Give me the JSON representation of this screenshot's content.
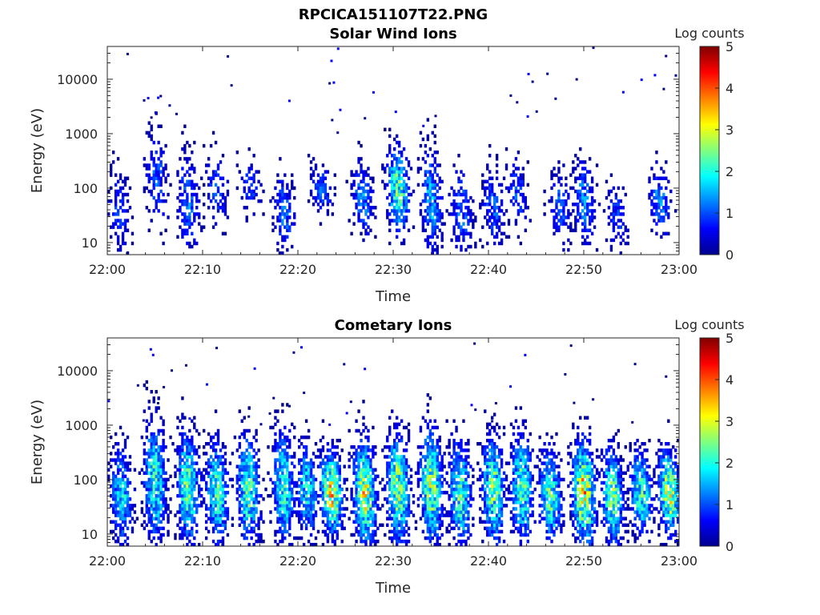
{
  "figure_title": "RPCICA151107T22.PNG",
  "chart_data": [
    {
      "type": "heatmap",
      "title": "Solar Wind Ions",
      "xlabel": "Time",
      "ylabel": "Energy (eV)",
      "x_ticks": [
        "22:00",
        "22:10",
        "22:20",
        "22:30",
        "22:40",
        "22:50",
        "23:00"
      ],
      "x_range": [
        "22:00",
        "23:00"
      ],
      "y_scale": "log",
      "y_ticks": [
        "10",
        "100",
        "1000",
        "10000"
      ],
      "y_range": [
        6,
        40000
      ],
      "colorbar": {
        "label": "Log counts",
        "ticks": [
          "0",
          "1",
          "2",
          "3",
          "4",
          "5"
        ],
        "range": [
          0,
          5
        ],
        "colormap": "jet"
      },
      "bursts": [
        {
          "t": 1.2,
          "lo": 6,
          "hi": 400,
          "peak": 1.0
        },
        {
          "t": 5.2,
          "lo": 20,
          "hi": 1800,
          "peak": 1.2
        },
        {
          "t": 8.5,
          "lo": 6,
          "hi": 900,
          "peak": 1.3
        },
        {
          "t": 11.5,
          "lo": 20,
          "hi": 600,
          "peak": 1.1
        },
        {
          "t": 15.0,
          "lo": 30,
          "hi": 500,
          "peak": 1.0
        },
        {
          "t": 18.5,
          "lo": 6,
          "hi": 300,
          "peak": 1.3
        },
        {
          "t": 22.5,
          "lo": 30,
          "hi": 400,
          "peak": 1.2
        },
        {
          "t": 26.8,
          "lo": 15,
          "hi": 400,
          "peak": 1.5
        },
        {
          "t": 30.5,
          "lo": 15,
          "hi": 900,
          "peak": 2.6
        },
        {
          "t": 34.0,
          "lo": 6,
          "hi": 1000,
          "peak": 1.7
        },
        {
          "t": 37.2,
          "lo": 6,
          "hi": 400,
          "peak": 1.3
        },
        {
          "t": 40.5,
          "lo": 6,
          "hi": 400,
          "peak": 1.2
        },
        {
          "t": 43.0,
          "lo": 20,
          "hi": 500,
          "peak": 1.2
        },
        {
          "t": 47.5,
          "lo": 10,
          "hi": 300,
          "peak": 1.2
        },
        {
          "t": 50.0,
          "lo": 10,
          "hi": 500,
          "peak": 1.5
        },
        {
          "t": 53.5,
          "lo": 6,
          "hi": 200,
          "peak": 1.0
        },
        {
          "t": 58.0,
          "lo": 15,
          "hi": 300,
          "peak": 1.5
        }
      ]
    },
    {
      "type": "heatmap",
      "title": "Cometary Ions",
      "xlabel": "Time",
      "ylabel": "Energy (eV)",
      "x_ticks": [
        "22:00",
        "22:10",
        "22:20",
        "22:30",
        "22:40",
        "22:50",
        "23:00"
      ],
      "x_range": [
        "22:00",
        "23:00"
      ],
      "y_scale": "log",
      "y_ticks": [
        "10",
        "100",
        "1000",
        "10000"
      ],
      "y_range": [
        6,
        40000
      ],
      "colorbar": {
        "label": "Log counts",
        "ticks": [
          "0",
          "1",
          "2",
          "3",
          "4",
          "5"
        ],
        "range": [
          0,
          5
        ],
        "colormap": "jet"
      },
      "bursts": [
        {
          "t": 1.5,
          "lo": 6,
          "hi": 700,
          "peak": 2.0
        },
        {
          "t": 5.0,
          "lo": 6,
          "hi": 3000,
          "peak": 2.4
        },
        {
          "t": 8.5,
          "lo": 6,
          "hi": 1500,
          "peak": 2.7
        },
        {
          "t": 11.5,
          "lo": 6,
          "hi": 900,
          "peak": 2.5
        },
        {
          "t": 14.8,
          "lo": 6,
          "hi": 1200,
          "peak": 2.6
        },
        {
          "t": 18.5,
          "lo": 6,
          "hi": 1500,
          "peak": 2.4
        },
        {
          "t": 21.0,
          "lo": 10,
          "hi": 700,
          "peak": 2.2
        },
        {
          "t": 23.5,
          "lo": 10,
          "hi": 500,
          "peak": 3.5
        },
        {
          "t": 27.0,
          "lo": 6,
          "hi": 900,
          "peak": 3.4
        },
        {
          "t": 30.5,
          "lo": 6,
          "hi": 1500,
          "peak": 3.0
        },
        {
          "t": 34.0,
          "lo": 6,
          "hi": 1800,
          "peak": 3.0
        },
        {
          "t": 37.0,
          "lo": 6,
          "hi": 1000,
          "peak": 2.6
        },
        {
          "t": 40.5,
          "lo": 6,
          "hi": 1200,
          "peak": 2.8
        },
        {
          "t": 43.5,
          "lo": 6,
          "hi": 1500,
          "peak": 2.6
        },
        {
          "t": 46.5,
          "lo": 6,
          "hi": 600,
          "peak": 2.5
        },
        {
          "t": 50.0,
          "lo": 6,
          "hi": 900,
          "peak": 3.7
        },
        {
          "t": 53.0,
          "lo": 6,
          "hi": 600,
          "peak": 2.8
        },
        {
          "t": 56.0,
          "lo": 10,
          "hi": 500,
          "peak": 2.5
        },
        {
          "t": 59.0,
          "lo": 10,
          "hi": 500,
          "peak": 3.4
        }
      ]
    }
  ]
}
